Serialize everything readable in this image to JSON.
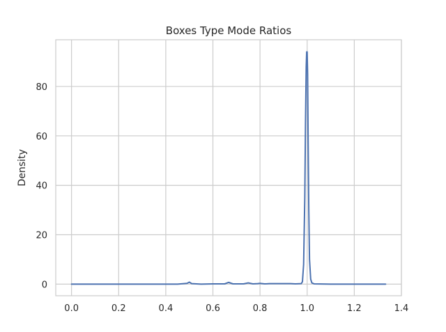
{
  "chart_data": {
    "type": "line",
    "title": "Boxes Type Mode Ratios",
    "xlabel": "",
    "ylabel": "Density",
    "xlim": [
      -0.067,
      1.4
    ],
    "ylim": [
      -4.7,
      98.9
    ],
    "xticks": [
      0.0,
      0.2,
      0.4,
      0.6,
      0.8,
      1.0,
      1.2,
      1.4
    ],
    "xtick_labels": [
      "0.0",
      "0.2",
      "0.4",
      "0.6",
      "0.8",
      "1.0",
      "1.2",
      "1.4"
    ],
    "yticks": [
      0,
      20,
      40,
      60,
      80
    ],
    "ytick_labels": [
      "0",
      "20",
      "40",
      "60",
      "80"
    ],
    "grid": true,
    "line_color": "#4c72b0",
    "grid_color": "#cccccc",
    "series": [
      {
        "x": [
          0.0,
          0.45,
          0.49,
          0.5,
          0.51,
          0.55,
          0.6,
          0.65,
          0.667,
          0.685,
          0.73,
          0.75,
          0.77,
          0.79,
          0.8,
          0.82,
          0.84,
          0.857,
          0.875,
          0.9,
          0.93,
          0.95,
          0.975,
          0.98,
          0.985,
          0.99,
          0.993,
          0.996,
          0.998,
          1.0,
          1.002,
          1.004,
          1.007,
          1.01,
          1.015,
          1.02,
          1.03,
          1.1,
          1.2,
          1.333
        ],
        "y": [
          0.0,
          0.0,
          0.3,
          0.8,
          0.2,
          0.0,
          0.1,
          0.1,
          0.7,
          0.1,
          0.1,
          0.5,
          0.1,
          0.2,
          0.3,
          0.1,
          0.2,
          0.2,
          0.2,
          0.2,
          0.2,
          0.1,
          0.2,
          1.0,
          8.0,
          35.0,
          65.0,
          88.0,
          94.0,
          94.0,
          85.0,
          60.0,
          30.0,
          10.0,
          2.0,
          0.5,
          0.1,
          0.0,
          0.0,
          0.0
        ]
      }
    ]
  }
}
